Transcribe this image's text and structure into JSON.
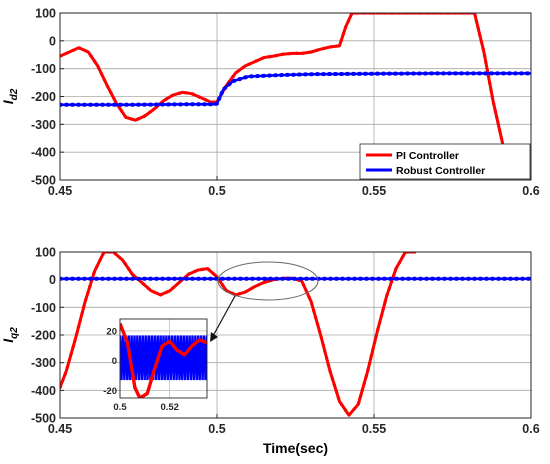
{
  "colors": {
    "pi": "#ff0000",
    "robust": "#0000ff",
    "grid": "#a9a9a9",
    "axis": "#262626"
  },
  "chart_data": [
    {
      "type": "line",
      "ylabel": "I",
      "ylabel_sub": "d2",
      "xlabel": "",
      "xlim": [
        0.45,
        0.6
      ],
      "ylim": [
        -500,
        100
      ],
      "xticks": [
        "0.45",
        "0.5",
        "0.55",
        "0.6"
      ],
      "yticks": [
        "100",
        "0",
        "-100",
        "-200",
        "-300",
        "-400",
        "-500"
      ],
      "grid": true,
      "legend": {
        "placement": "bottom-right",
        "entries": [
          "PI Controller",
          "Robust Controller"
        ]
      },
      "series": [
        {
          "name": "PI Controller",
          "x": [
            0.45,
            0.453,
            0.456,
            0.459,
            0.462,
            0.465,
            0.468,
            0.471,
            0.474,
            0.477,
            0.48,
            0.483,
            0.486,
            0.489,
            0.492,
            0.495,
            0.498,
            0.5,
            0.503,
            0.506,
            0.509,
            0.512,
            0.515,
            0.518,
            0.521,
            0.524,
            0.527,
            0.53,
            0.533,
            0.536,
            0.539,
            0.541,
            0.543,
            0.582,
            0.585,
            0.588,
            0.591,
            0.593
          ],
          "y": [
            -55,
            -40,
            -25,
            -40,
            -90,
            -160,
            -225,
            -275,
            -285,
            -270,
            -245,
            -215,
            -195,
            -185,
            -190,
            -205,
            -220,
            -220,
            -160,
            -115,
            -90,
            -75,
            -60,
            -55,
            -48,
            -45,
            -45,
            -40,
            -30,
            -22,
            -18,
            50,
            100,
            100,
            -40,
            -220,
            -370,
            -480
          ]
        },
        {
          "name": "Robust Controller",
          "x": [
            0.45,
            0.47,
            0.49,
            0.499,
            0.5,
            0.502,
            0.505,
            0.51,
            0.52,
            0.53,
            0.55,
            0.57,
            0.6
          ],
          "y": [
            -230,
            -230,
            -228,
            -228,
            -225,
            -175,
            -145,
            -128,
            -123,
            -120,
            -118,
            -117,
            -117
          ]
        }
      ]
    },
    {
      "type": "line",
      "ylabel": "I",
      "ylabel_sub": "q2",
      "xlabel": "Time(sec)",
      "xlim": [
        0.45,
        0.6
      ],
      "ylim": [
        -500,
        100
      ],
      "xticks": [
        "0.45",
        "0.5",
        "0.55",
        "0.6"
      ],
      "yticks": [
        "100",
        "0",
        "-100",
        "-200",
        "-300",
        "-400",
        "-500"
      ],
      "grid": true,
      "series": [
        {
          "name": "PI Controller",
          "x": [
            0.45,
            0.452,
            0.455,
            0.458,
            0.461,
            0.464,
            0.467,
            0.47,
            0.473,
            0.476,
            0.479,
            0.482,
            0.485,
            0.488,
            0.491,
            0.494,
            0.497,
            0.5,
            0.503,
            0.506,
            0.509,
            0.512,
            0.515,
            0.518,
            0.521,
            0.524,
            0.527,
            0.53,
            0.533,
            0.536,
            0.539,
            0.542,
            0.545,
            0.548,
            0.551,
            0.554,
            0.557,
            0.56,
            0.563
          ],
          "y": [
            -390,
            -330,
            -210,
            -80,
            30,
            100,
            100,
            70,
            20,
            -10,
            -40,
            -55,
            -40,
            -10,
            20,
            35,
            40,
            10,
            -40,
            -55,
            -45,
            -25,
            -10,
            0,
            5,
            5,
            -5,
            -80,
            -200,
            -330,
            -440,
            -490,
            -450,
            -330,
            -190,
            -60,
            40,
            100,
            100
          ]
        },
        {
          "name": "Robust Controller",
          "x": [
            0.45,
            0.6
          ],
          "y": [
            3,
            3
          ]
        }
      ],
      "inset": {
        "xlim": [
          0.5,
          0.535
        ],
        "ylim": [
          -25,
          28
        ],
        "xticks": [
          "0.5",
          "0.52"
        ],
        "yticks": [
          "20",
          "0",
          "-20"
        ],
        "pi_x": [
          0.5,
          0.503,
          0.506,
          0.508,
          0.511,
          0.514,
          0.517,
          0.52,
          0.523,
          0.526,
          0.529,
          0.532,
          0.535
        ],
        "pi_y": [
          25,
          12,
          -18,
          -25,
          -22,
          -5,
          10,
          13,
          7,
          4,
          10,
          14,
          12
        ]
      }
    }
  ]
}
